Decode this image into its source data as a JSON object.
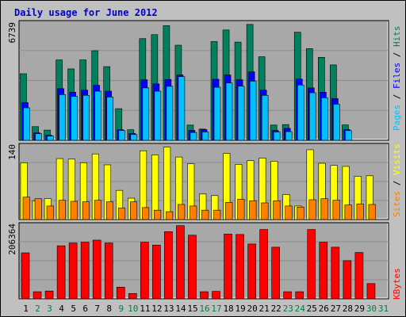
{
  "title": "Daily usage for June 2012",
  "colors": {
    "title": "#0000CC",
    "bg_outer": "#C0C0C0",
    "bg_panel": "#A8A8A8",
    "hits": "#00805C",
    "files": "#0000FF",
    "pages": "#00C0FF",
    "visits": "#FFFF00",
    "sites": "#FF8000",
    "kbytes": "#FF0000",
    "weekend": "#008040",
    "weekday": "#000000"
  },
  "chart_data": [
    {
      "type": "bar",
      "name": "top",
      "ymax_label": "6739",
      "ymax": 6739,
      "right_labels": [
        "Pages",
        "Files",
        "Hits"
      ],
      "series": [
        {
          "name": "Hits",
          "values": [
            3850,
            790,
            590,
            4650,
            4130,
            4650,
            5180,
            4260,
            1830,
            610,
            5880,
            6110,
            6630,
            5500,
            880,
            650,
            5710,
            6380,
            5680,
            6700,
            4830,
            880,
            910,
            6250,
            5300,
            4800,
            4360,
            890,
            0,
            0,
            0
          ]
        },
        {
          "name": "Files",
          "values": [
            2180,
            430,
            290,
            2990,
            2780,
            2900,
            3180,
            2840,
            610,
            400,
            3500,
            3260,
            3520,
            3780,
            570,
            620,
            3530,
            3780,
            3500,
            3960,
            2900,
            570,
            690,
            3540,
            3030,
            2780,
            2410,
            620,
            0,
            0,
            0
          ]
        },
        {
          "name": "Pages",
          "values": [
            1880,
            380,
            240,
            2640,
            2540,
            2600,
            2840,
            2500,
            560,
            330,
            3030,
            2840,
            3120,
            3680,
            450,
            480,
            3070,
            3320,
            3130,
            3420,
            2600,
            480,
            500,
            3200,
            2750,
            2460,
            2090,
            560,
            0,
            0,
            0
          ]
        }
      ]
    },
    {
      "type": "bar",
      "name": "middle",
      "ymax_label": "140",
      "ymax": 140,
      "right_labels": [
        "Sites",
        "Visits"
      ],
      "series": [
        {
          "name": "Visits",
          "values": [
            109,
            36,
            40,
            117,
            116,
            109,
            126,
            105,
            56,
            41,
            132,
            124,
            139,
            120,
            107,
            49,
            46,
            127,
            106,
            113,
            118,
            112,
            48,
            26,
            134,
            108,
            104,
            102,
            83,
            84,
            0
          ]
        },
        {
          "name": "Sites",
          "values": [
            43,
            40,
            26,
            37,
            35,
            34,
            37,
            34,
            22,
            34,
            23,
            18,
            15,
            29,
            26,
            18,
            18,
            33,
            39,
            36,
            32,
            36,
            26,
            24,
            38,
            40,
            37,
            28,
            30,
            29,
            0
          ]
        }
      ]
    },
    {
      "type": "bar",
      "name": "bottom",
      "ymax_label": "206364",
      "ymax": 206364,
      "right_labels": [
        "KBytes"
      ],
      "series": [
        {
          "name": "KBytes",
          "values": [
            130000,
            20000,
            22000,
            150000,
            158000,
            160000,
            166000,
            158000,
            33000,
            15000,
            160000,
            152000,
            190000,
            207000,
            180000,
            20000,
            21000,
            183000,
            182000,
            155000,
            196000,
            146000,
            20000,
            20000,
            196000,
            160000,
            146000,
            108000,
            131000,
            43000,
            0
          ]
        }
      ]
    }
  ],
  "x_labels": [
    "1",
    "2",
    "3",
    "4",
    "5",
    "6",
    "7",
    "8",
    "9",
    "10",
    "11",
    "12",
    "13",
    "14",
    "15",
    "16",
    "17",
    "18",
    "19",
    "20",
    "21",
    "22",
    "23",
    "24",
    "25",
    "26",
    "27",
    "28",
    "29",
    "30",
    "31"
  ],
  "weekend_days": [
    2,
    3,
    9,
    10,
    16,
    17,
    23,
    24,
    30,
    31
  ]
}
